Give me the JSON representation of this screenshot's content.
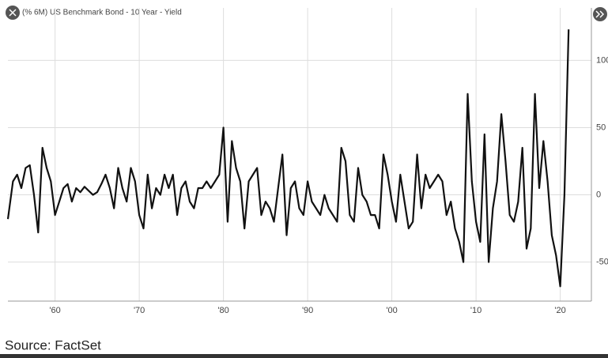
{
  "chart_data": {
    "type": "line",
    "title": "(% 6M) US Benchmark Bond - 10 Year - Yield",
    "source": "Source: FactSet",
    "color": "#111111",
    "x": [
      1954.4,
      1955,
      1955.5,
      1956,
      1956.5,
      1957,
      1957.5,
      1958,
      1958.5,
      1959,
      1959.5,
      1960,
      1960.5,
      1961,
      1961.5,
      1962,
      1962.5,
      1963,
      1963.5,
      1964,
      1964.5,
      1965,
      1965.5,
      1966,
      1966.5,
      1967,
      1967.5,
      1968,
      1968.5,
      1969,
      1969.5,
      1970,
      1970.5,
      1971,
      1971.5,
      1972,
      1972.5,
      1973,
      1973.5,
      1974,
      1974.5,
      1975,
      1975.5,
      1976,
      1976.5,
      1977,
      1977.5,
      1978,
      1978.5,
      1979,
      1979.5,
      1980,
      1980.5,
      1981,
      1981.5,
      1982,
      1982.5,
      1983,
      1983.5,
      1984,
      1984.5,
      1985,
      1985.5,
      1986,
      1986.5,
      1987,
      1987.5,
      1988,
      1988.5,
      1989,
      1989.5,
      1990,
      1990.5,
      1991,
      1991.5,
      1992,
      1992.5,
      1993,
      1993.5,
      1994,
      1994.5,
      1995,
      1995.5,
      1996,
      1996.5,
      1997,
      1997.5,
      1998,
      1998.5,
      1999,
      1999.5,
      2000,
      2000.5,
      2001,
      2001.5,
      2002,
      2002.5,
      2003,
      2003.5,
      2004,
      2004.5,
      2005,
      2005.5,
      2006,
      2006.5,
      2007,
      2007.5,
      2008,
      2008.5,
      2009,
      2009.5,
      2010,
      2010.5,
      2011,
      2011.5,
      2012,
      2012.5,
      2013,
      2013.5,
      2014,
      2014.5,
      2015,
      2015.5,
      2016,
      2016.5,
      2017,
      2017.5,
      2018,
      2018.5,
      2019,
      2019.5,
      2020,
      2020.5,
      2021
    ],
    "values": [
      -18,
      10,
      15,
      5,
      20,
      22,
      0,
      -28,
      35,
      20,
      10,
      -15,
      -5,
      5,
      8,
      -5,
      5,
      2,
      6,
      3,
      0,
      2,
      8,
      15,
      5,
      -10,
      20,
      5,
      -5,
      20,
      10,
      -15,
      -25,
      15,
      -10,
      5,
      0,
      15,
      5,
      15,
      -15,
      5,
      10,
      -5,
      -10,
      5,
      5,
      10,
      5,
      10,
      15,
      50,
      -20,
      40,
      20,
      10,
      -25,
      10,
      15,
      20,
      -15,
      -5,
      -10,
      -20,
      5,
      30,
      -30,
      5,
      10,
      -10,
      -15,
      10,
      -5,
      -10,
      -15,
      0,
      -10,
      -15,
      -20,
      35,
      25,
      -15,
      -20,
      20,
      0,
      -5,
      -15,
      -15,
      -25,
      30,
      15,
      -5,
      -20,
      15,
      -5,
      -25,
      -20,
      30,
      -10,
      15,
      5,
      10,
      15,
      10,
      -15,
      -5,
      -25,
      -35,
      -50,
      75,
      10,
      -20,
      -35,
      45,
      -50,
      -10,
      10,
      60,
      25,
      -15,
      -20,
      -5,
      35,
      -40,
      -25,
      75,
      5,
      40,
      10,
      -30,
      -45,
      -68,
      0,
      123
    ],
    "xlim": [
      1954.4,
      2023.7
    ],
    "ylim": [
      -79,
      139
    ],
    "xticks": [
      {
        "value": 1960,
        "label": "'60"
      },
      {
        "value": 1970,
        "label": "'70"
      },
      {
        "value": 1980,
        "label": "'80"
      },
      {
        "value": 1990,
        "label": "'90"
      },
      {
        "value": 2000,
        "label": "'00"
      },
      {
        "value": 2010,
        "label": "'10"
      },
      {
        "value": 2020,
        "label": "'20"
      }
    ],
    "yticks": [
      -50,
      0,
      50,
      100
    ],
    "grid": true
  }
}
